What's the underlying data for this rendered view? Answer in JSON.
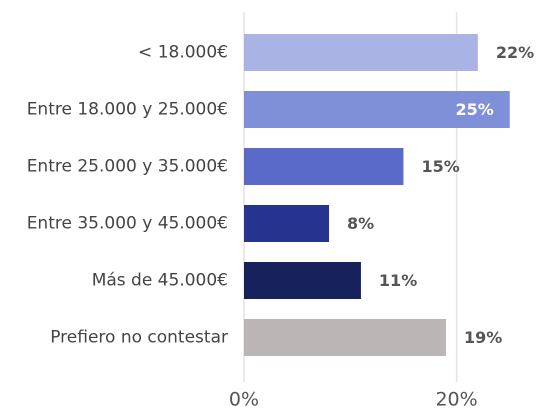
{
  "chart_data": {
    "type": "bar",
    "orientation": "horizontal",
    "categories": [
      "< 18.000€",
      "Entre 18.000 y 25.000€",
      "Entre 25.000 y 35.000€",
      "Entre 35.000 y 45.000€",
      "Más de 45.000€",
      "Prefiero no contestar"
    ],
    "values": [
      22,
      25,
      15,
      8,
      11,
      19
    ],
    "value_labels": [
      "22%",
      "25%",
      "15%",
      "8%",
      "11%",
      "19%"
    ],
    "colors": [
      "#aab4e4",
      "#7f8fd8",
      "#5a6ac9",
      "#26348f",
      "#17215b",
      "#bab6b6"
    ],
    "xlim": [
      0,
      27
    ],
    "xticks": [
      {
        "value": 0,
        "label": "0%"
      },
      {
        "value": 20,
        "label": "20%"
      }
    ],
    "grid": true
  }
}
